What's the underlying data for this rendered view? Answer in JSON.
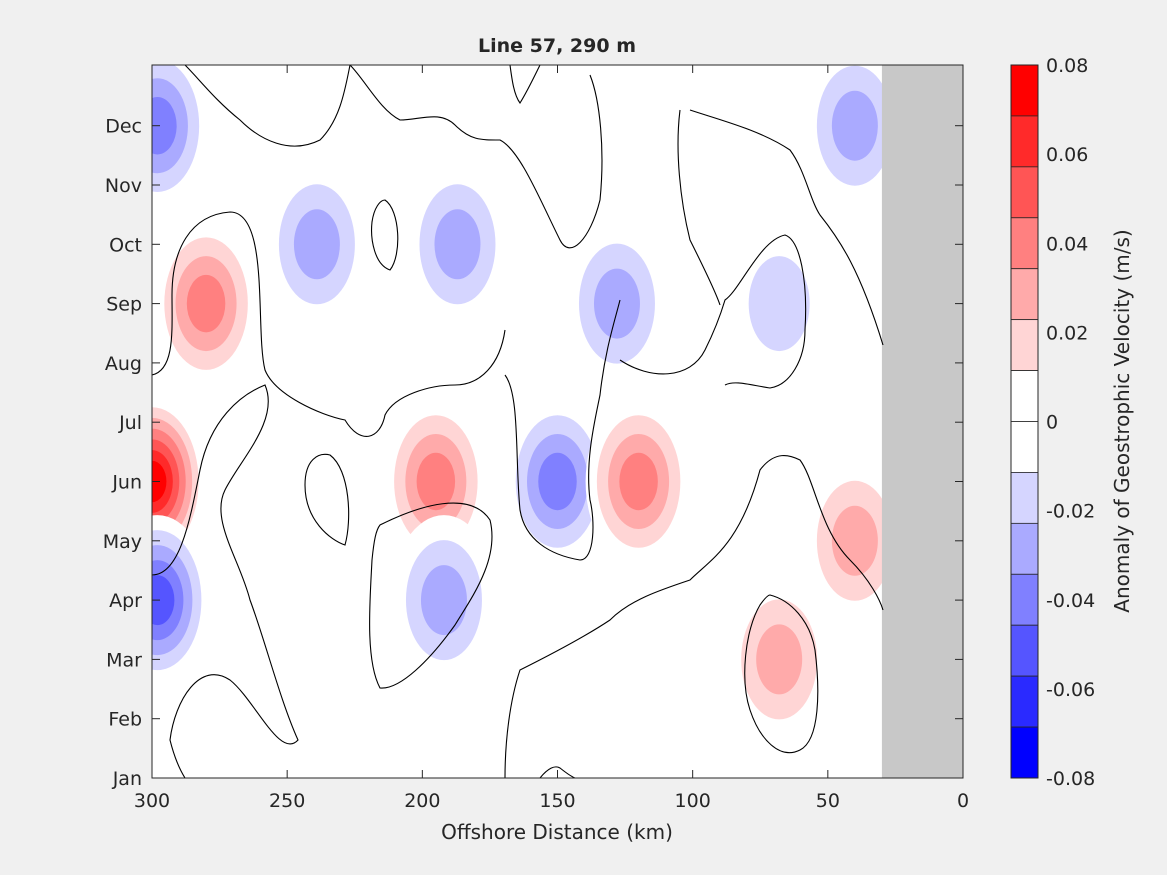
{
  "chart_data": {
    "type": "heatmap",
    "title": "Line 57, 290 m",
    "xlabel": "Offshore Distance (km)",
    "ylabel": "",
    "x_reversed": true,
    "xlim": [
      0,
      300
    ],
    "x_ticks": [
      300,
      250,
      200,
      150,
      100,
      50,
      0
    ],
    "y_ticks": [
      "Jan",
      "Feb",
      "Mar",
      "Apr",
      "May",
      "Jun",
      "Jul",
      "Aug",
      "Sep",
      "Oct",
      "Nov",
      "Dec"
    ],
    "no_data_region": {
      "x_from": 0,
      "x_to": 30,
      "color": "#c8c8c8"
    },
    "colorbar": {
      "label": "Anomaly of Geostrophic Velocity (m/s)",
      "range": [
        -0.08,
        0.08
      ],
      "tick_labels": [
        "0.08",
        "0.06",
        "0.04",
        "0.02",
        "0",
        "-0.02",
        "-0.04",
        "-0.06",
        "-0.08"
      ],
      "levels": [
        "#ff0000",
        "#ff2a2a",
        "#ff5555",
        "#ff8080",
        "#ffaaaa",
        "#ffd5d5",
        "#ffffff",
        "#ffffff",
        "#d5d5ff",
        "#aaaaff",
        "#8080ff",
        "#5555ff",
        "#2a2aff",
        "#0000ff"
      ]
    },
    "anomalies": [
      {
        "x": 300,
        "month": "Jun",
        "value": 0.07
      },
      {
        "x": 280,
        "month": "Sep",
        "value": 0.035
      },
      {
        "x": 298,
        "month": "Dec",
        "value": -0.035
      },
      {
        "x": 298,
        "month": "Apr",
        "value": -0.05
      },
      {
        "x": 239,
        "month": "Oct",
        "value": -0.03
      },
      {
        "x": 187,
        "month": "Oct",
        "value": -0.03
      },
      {
        "x": 195,
        "month": "Jun",
        "value": 0.035
      },
      {
        "x": 150,
        "month": "Jun",
        "value": -0.04
      },
      {
        "x": 120,
        "month": "Jun",
        "value": 0.04
      },
      {
        "x": 192,
        "month": "Apr",
        "value": -0.03
      },
      {
        "x": 128,
        "month": "Sep",
        "value": -0.03
      },
      {
        "x": 68,
        "month": "Mar",
        "value": 0.03
      },
      {
        "x": 40,
        "month": "Dec",
        "value": -0.025
      },
      {
        "x": 40,
        "month": "May",
        "value": 0.03
      },
      {
        "x": 68,
        "month": "Sep",
        "value": -0.015
      }
    ]
  }
}
